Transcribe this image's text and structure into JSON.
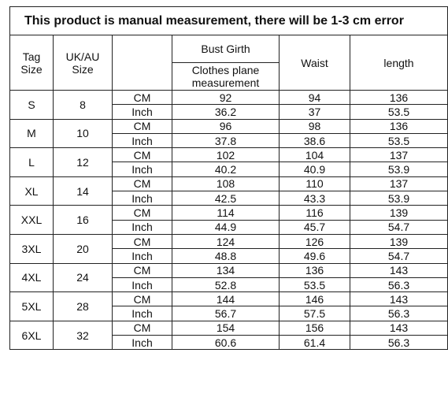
{
  "title": "This product is manual measurement, there will be 1-3 cm error",
  "header": {
    "tag_size": "Tag Size",
    "uk_au_size": "UK/AU Size",
    "bust_girth": "Bust Girth",
    "clothes_plane": "Clothes plane measurement",
    "waist": "Waist",
    "length": "length"
  },
  "units": [
    "CM",
    "Inch"
  ],
  "rows": [
    {
      "tag": "S",
      "uk": 8,
      "cm": [
        92,
        94,
        136
      ],
      "inch": [
        36.2,
        37,
        53.5
      ]
    },
    {
      "tag": "M",
      "uk": 10,
      "cm": [
        96,
        98,
        136
      ],
      "inch": [
        37.8,
        38.6,
        53.5
      ]
    },
    {
      "tag": "L",
      "uk": 12,
      "cm": [
        102,
        104,
        137
      ],
      "inch": [
        40.2,
        40.9,
        53.9
      ]
    },
    {
      "tag": "XL",
      "uk": 14,
      "cm": [
        108,
        110,
        137
      ],
      "inch": [
        42.5,
        43.3,
        53.9
      ]
    },
    {
      "tag": "XXL",
      "uk": 16,
      "cm": [
        114,
        116,
        139
      ],
      "inch": [
        44.9,
        45.7,
        54.7
      ]
    },
    {
      "tag": "3XL",
      "uk": 20,
      "cm": [
        124,
        126,
        139
      ],
      "inch": [
        48.8,
        49.6,
        54.7
      ]
    },
    {
      "tag": "4XL",
      "uk": 24,
      "cm": [
        134,
        136,
        143
      ],
      "inch": [
        52.8,
        53.5,
        56.3
      ]
    },
    {
      "tag": "5XL",
      "uk": 28,
      "cm": [
        144,
        146,
        143
      ],
      "inch": [
        56.7,
        57.5,
        56.3
      ]
    },
    {
      "tag": "6XL",
      "uk": 32,
      "cm": [
        154,
        156,
        143
      ],
      "inch": [
        60.6,
        61.4,
        56.3
      ]
    }
  ]
}
